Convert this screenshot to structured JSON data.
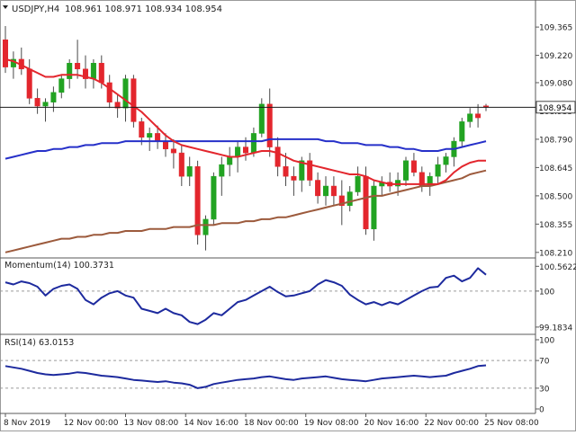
{
  "header": {
    "symbol_label": "USDJPY,H4",
    "ohlc_text": "108.961 108.971 108.934 108.954",
    "dropdown_icon": "triangle-down-icon"
  },
  "colors": {
    "bull": "#22a322",
    "bear": "#e3262d",
    "wick": "#4a4a4a",
    "ma_fast": "#e3262d",
    "ma_mid": "#2630c9",
    "ma_slow": "#9c5a3c",
    "indicator_line": "#1d2a9e",
    "level_line": "#9a9a9a",
    "axis_text": "#222222",
    "price_label_bg": "#ffffff"
  },
  "chart_data": [
    {
      "type": "candlestick",
      "name": "USDJPY,H4",
      "ylim": [
        108.2,
        109.43
      ],
      "y_ticks": [
        "109.365",
        "109.220",
        "109.080",
        "108.935",
        "108.790",
        "108.645",
        "108.500",
        "108.355",
        "108.210"
      ],
      "current_price": "108.954",
      "x_ticks": [
        "8 Nov 2019",
        "12 Nov 00:00",
        "13 Nov 08:00",
        "14 Nov 16:00",
        "18 Nov 00:00",
        "19 Nov 08:00",
        "20 Nov 16:00",
        "22 Nov 00:00",
        "25 Nov 08:00"
      ],
      "candles": [
        [
          109.3,
          109.37,
          109.13,
          109.16
        ],
        [
          109.16,
          109.24,
          109.1,
          109.2
        ],
        [
          109.2,
          109.26,
          109.12,
          109.15
        ],
        [
          109.15,
          109.2,
          108.97,
          109.0
        ],
        [
          109.0,
          109.05,
          108.92,
          108.96
        ],
        [
          108.96,
          109.0,
          108.88,
          108.98
        ],
        [
          108.98,
          109.06,
          108.93,
          109.03
        ],
        [
          109.03,
          109.12,
          109.0,
          109.1
        ],
        [
          109.1,
          109.2,
          109.05,
          109.18
        ],
        [
          109.18,
          109.3,
          109.1,
          109.15
        ],
        [
          109.15,
          109.22,
          109.05,
          109.1
        ],
        [
          109.1,
          109.2,
          109.05,
          109.18
        ],
        [
          109.18,
          109.22,
          109.05,
          109.08
        ],
        [
          109.08,
          109.12,
          108.95,
          108.98
        ],
        [
          108.98,
          109.02,
          108.9,
          108.95
        ],
        [
          108.95,
          109.12,
          108.88,
          109.1
        ],
        [
          109.1,
          109.12,
          108.85,
          108.88
        ],
        [
          108.88,
          108.9,
          108.76,
          108.8
        ],
        [
          108.8,
          108.85,
          108.73,
          108.82
        ],
        [
          108.82,
          108.86,
          108.74,
          108.78
        ],
        [
          108.78,
          108.82,
          108.7,
          108.74
        ],
        [
          108.74,
          108.79,
          108.64,
          108.72
        ],
        [
          108.72,
          108.76,
          108.55,
          108.6
        ],
        [
          108.6,
          108.7,
          108.55,
          108.65
        ],
        [
          108.65,
          108.68,
          108.25,
          108.3
        ],
        [
          108.3,
          108.4,
          108.22,
          108.38
        ],
        [
          108.38,
          108.62,
          108.35,
          108.6
        ],
        [
          108.6,
          108.7,
          108.5,
          108.66
        ],
        [
          108.66,
          108.75,
          108.6,
          108.7
        ],
        [
          108.7,
          108.78,
          108.62,
          108.75
        ],
        [
          108.75,
          108.8,
          108.68,
          108.72
        ],
        [
          108.72,
          108.85,
          108.7,
          108.82
        ],
        [
          108.82,
          109.0,
          108.8,
          108.97
        ],
        [
          108.97,
          109.05,
          108.7,
          108.75
        ],
        [
          108.75,
          108.8,
          108.6,
          108.65
        ],
        [
          108.65,
          108.72,
          108.55,
          108.6
        ],
        [
          108.6,
          108.65,
          108.5,
          108.58
        ],
        [
          108.58,
          108.7,
          108.52,
          108.68
        ],
        [
          108.68,
          108.72,
          108.55,
          108.58
        ],
        [
          108.58,
          108.62,
          108.46,
          108.5
        ],
        [
          108.5,
          108.6,
          108.45,
          108.55
        ],
        [
          108.55,
          108.6,
          108.45,
          108.5
        ],
        [
          108.5,
          108.58,
          108.35,
          108.45
        ],
        [
          108.45,
          108.55,
          108.42,
          108.52
        ],
        [
          108.52,
          108.65,
          108.5,
          108.6
        ],
        [
          108.6,
          108.65,
          108.3,
          108.33
        ],
        [
          108.33,
          108.58,
          108.27,
          108.55
        ],
        [
          108.55,
          108.6,
          108.5,
          108.57
        ],
        [
          108.57,
          108.62,
          108.52,
          108.55
        ],
        [
          108.55,
          108.62,
          108.5,
          108.58
        ],
        [
          108.58,
          108.7,
          108.55,
          108.68
        ],
        [
          108.68,
          108.72,
          108.6,
          108.62
        ],
        [
          108.62,
          108.65,
          108.52,
          108.55
        ],
        [
          108.55,
          108.62,
          108.5,
          108.6
        ],
        [
          108.6,
          108.7,
          108.56,
          108.66
        ],
        [
          108.66,
          108.72,
          108.62,
          108.7
        ],
        [
          108.7,
          108.8,
          108.65,
          108.78
        ],
        [
          108.78,
          108.9,
          108.75,
          108.88
        ],
        [
          108.88,
          108.95,
          108.85,
          108.92
        ],
        [
          108.92,
          108.97,
          108.85,
          108.9
        ],
        [
          108.961,
          108.971,
          108.934,
          108.954
        ]
      ],
      "ma_fast": [
        109.2,
        109.19,
        109.17,
        109.15,
        109.13,
        109.11,
        109.11,
        109.12,
        109.12,
        109.12,
        109.11,
        109.1,
        109.08,
        109.05,
        109.02,
        108.99,
        108.96,
        108.93,
        108.89,
        108.85,
        108.81,
        108.78,
        108.76,
        108.75,
        108.74,
        108.73,
        108.72,
        108.71,
        108.7,
        108.7,
        108.71,
        108.72,
        108.73,
        108.73,
        108.72,
        108.7,
        108.68,
        108.67,
        108.66,
        108.65,
        108.64,
        108.63,
        108.62,
        108.61,
        108.61,
        108.6,
        108.58,
        108.57,
        108.56,
        108.56,
        108.56,
        108.56,
        108.56,
        108.56,
        108.56,
        108.58,
        108.62,
        108.65,
        108.67,
        108.68,
        108.68
      ],
      "ma_mid": [
        108.69,
        108.7,
        108.71,
        108.72,
        108.73,
        108.73,
        108.74,
        108.74,
        108.75,
        108.75,
        108.76,
        108.76,
        108.77,
        108.77,
        108.77,
        108.78,
        108.78,
        108.78,
        108.78,
        108.78,
        108.78,
        108.78,
        108.78,
        108.78,
        108.78,
        108.78,
        108.78,
        108.78,
        108.78,
        108.78,
        108.78,
        108.78,
        108.78,
        108.79,
        108.79,
        108.79,
        108.79,
        108.79,
        108.79,
        108.79,
        108.78,
        108.78,
        108.77,
        108.77,
        108.77,
        108.76,
        108.76,
        108.76,
        108.75,
        108.75,
        108.74,
        108.74,
        108.73,
        108.73,
        108.73,
        108.74,
        108.74,
        108.75,
        108.76,
        108.77,
        108.78
      ],
      "ma_slow": [
        108.21,
        108.22,
        108.23,
        108.24,
        108.25,
        108.26,
        108.27,
        108.28,
        108.28,
        108.29,
        108.29,
        108.3,
        108.3,
        108.31,
        108.31,
        108.32,
        108.32,
        108.32,
        108.33,
        108.33,
        108.33,
        108.34,
        108.34,
        108.34,
        108.35,
        108.35,
        108.35,
        108.36,
        108.36,
        108.36,
        108.37,
        108.37,
        108.38,
        108.38,
        108.39,
        108.39,
        108.4,
        108.41,
        108.42,
        108.43,
        108.44,
        108.45,
        108.46,
        108.47,
        108.48,
        108.49,
        108.5,
        108.5,
        108.51,
        108.52,
        108.53,
        108.54,
        108.55,
        108.55,
        108.56,
        108.57,
        108.58,
        108.59,
        108.61,
        108.62,
        108.63
      ]
    },
    {
      "type": "line",
      "name": "Momentum(14)",
      "title": "Momentum(14) 100.3731",
      "ylim": [
        99.1,
        100.65
      ],
      "y_ticks": [
        "100.5622",
        "100",
        "99.1834"
      ],
      "level": 100,
      "values": [
        100.2,
        100.15,
        100.22,
        100.18,
        100.1,
        99.9,
        100.05,
        100.12,
        100.15,
        100.05,
        99.8,
        99.7,
        99.85,
        99.95,
        100.0,
        99.9,
        99.85,
        99.6,
        99.55,
        99.5,
        99.6,
        99.5,
        99.45,
        99.3,
        99.25,
        99.35,
        99.5,
        99.45,
        99.6,
        99.75,
        99.8,
        99.9,
        100.0,
        100.1,
        99.98,
        99.88,
        99.9,
        99.95,
        100.0,
        100.15,
        100.25,
        100.2,
        100.12,
        99.92,
        99.8,
        99.7,
        99.75,
        99.68,
        99.75,
        99.7,
        99.8,
        99.9,
        100.0,
        100.08,
        100.1,
        100.3,
        100.35,
        100.22,
        100.3,
        100.52,
        100.37
      ]
    },
    {
      "type": "line",
      "name": "RSI(14)",
      "title": "RSI(14) 63.0153",
      "ylim": [
        0,
        100
      ],
      "y_ticks": [
        "100",
        "70",
        "30",
        "0"
      ],
      "levels": [
        70,
        30
      ],
      "values": [
        62,
        60,
        58,
        55,
        52,
        50,
        49,
        50,
        51,
        53,
        52,
        50,
        48,
        47,
        46,
        44,
        42,
        41,
        40,
        39,
        40,
        38,
        37,
        35,
        30,
        32,
        36,
        38,
        40,
        42,
        43,
        44,
        46,
        47,
        45,
        43,
        42,
        44,
        45,
        46,
        47,
        45,
        43,
        42,
        41,
        40,
        42,
        44,
        45,
        46,
        47,
        48,
        47,
        46,
        47,
        48,
        52,
        55,
        58,
        62,
        63
      ]
    }
  ]
}
